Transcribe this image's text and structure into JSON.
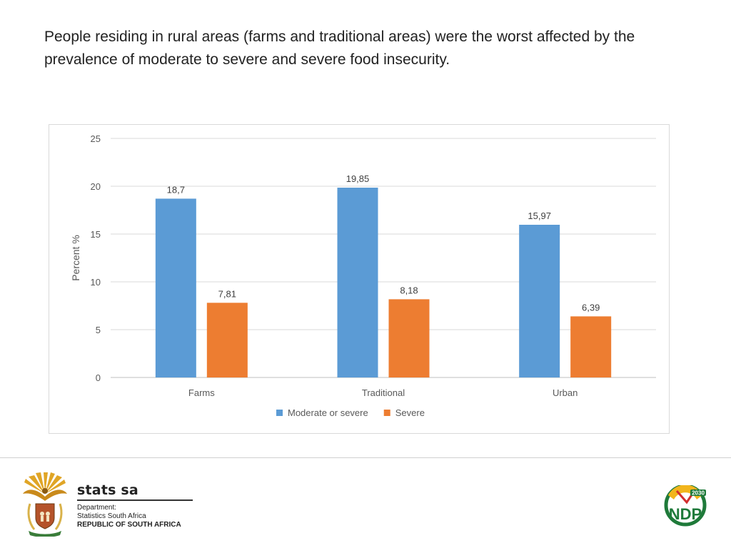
{
  "headline": "People residing in rural areas (farms and traditional areas) were the worst affected by the prevalence of moderate to severe and severe food insecurity.",
  "chart_data": {
    "type": "bar",
    "categories": [
      "Farms",
      "Traditional",
      "Urban"
    ],
    "series": [
      {
        "name": "Moderate or severe",
        "values": [
          18.7,
          19.85,
          15.97
        ],
        "labels": [
          "18,7",
          "19,85",
          "15,97"
        ],
        "color": "#5b9bd5"
      },
      {
        "name": "Severe",
        "values": [
          7.81,
          8.18,
          6.39
        ],
        "labels": [
          "7,81",
          "8,18",
          "6,39"
        ],
        "color": "#ed7d31"
      }
    ],
    "ylabel": "Percent %",
    "ylim": [
      0,
      25
    ],
    "yticks": [
      0,
      5,
      10,
      15,
      20,
      25
    ],
    "grid": true,
    "legend": "bottom"
  },
  "footer": {
    "brand": "stats sa",
    "dept_line1": "Department:",
    "dept_line2": "Statistics South Africa",
    "dept_line3": "REPUBLIC OF SOUTH AFRICA",
    "coat_of_arms_icon": "coat-of-arms-icon",
    "ndp_logo": {
      "text": "NDP",
      "year": "2030"
    }
  }
}
